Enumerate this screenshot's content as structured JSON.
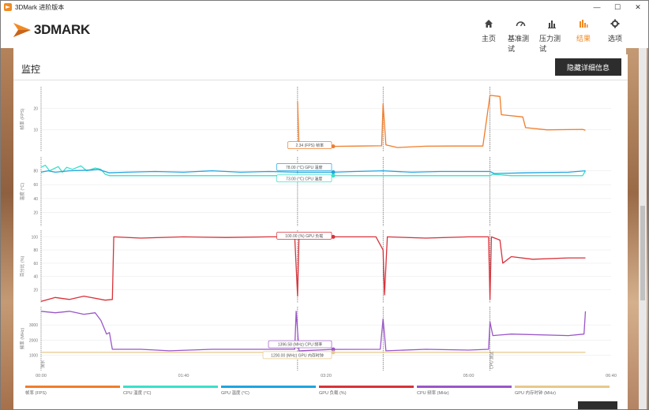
{
  "window": {
    "title": "3DMark 进阶版本",
    "controls": [
      "—",
      "☐",
      "✕"
    ]
  },
  "brand": {
    "logo_text": "3DMARK"
  },
  "nav": [
    {
      "label": "主页",
      "icon": "home-icon",
      "active": false
    },
    {
      "label": "基准测试",
      "icon": "gauge-icon",
      "active": false
    },
    {
      "label": "压力测试",
      "icon": "bars-icon",
      "active": false
    },
    {
      "label": "结果",
      "icon": "results-icon",
      "active": true
    },
    {
      "label": "选项",
      "icon": "gear-icon",
      "active": false
    }
  ],
  "monitor": {
    "title": "监控",
    "hide_details_label": "隐藏详细信息"
  },
  "colors": {
    "accent": "#f08a24",
    "fps": "#f07d2a",
    "cpu_temp": "#3ae0c8",
    "gpu_temp": "#1ea5e0",
    "gpu_load": "#d8323a",
    "cpu_freq": "#9a56c8",
    "gpu_mem_clock": "#e8c88a"
  },
  "chart_data": {
    "type": "line",
    "x_ticks": [
      "00:00",
      "01:40",
      "03:20",
      "05:00",
      "06:40"
    ],
    "x_range_seconds": [
      0,
      400
    ],
    "cursor_time_s": 205,
    "markers": [
      {
        "t": 180,
        "label": ""
      },
      {
        "t": 240,
        "label": ""
      },
      {
        "t": 315,
        "label": "CPU 测试"
      }
    ],
    "start_marker_label": "演示",
    "panels": [
      {
        "ylabel": "帧率 (FPS)",
        "y_ticks": [
          10,
          20
        ],
        "ylim": [
          0,
          30
        ],
        "series": [
          {
            "name": "帧率 (FPS)",
            "color": "#f07d2a",
            "points": [
              [
                180,
                23
              ],
              [
                181,
                3
              ],
              [
                190,
                2.3
              ],
              [
                205,
                2.34
              ],
              [
                225,
                2.5
              ],
              [
                239,
                2.6
              ],
              [
                240,
                22
              ],
              [
                242,
                3
              ],
              [
                250,
                1.8
              ],
              [
                270,
                2.4
              ],
              [
                290,
                2.5
              ],
              [
                310,
                2.5
              ],
              [
                315,
                26
              ],
              [
                322,
                25.5
              ],
              [
                323,
                17
              ],
              [
                338,
                16
              ],
              [
                340,
                11
              ],
              [
                355,
                10
              ],
              [
                380,
                10.2
              ],
              [
                382,
                9.8
              ]
            ]
          }
        ],
        "tooltips": [
          {
            "text": "2.34 (FPS) 帧率",
            "series": 0,
            "t": 205,
            "v": 2.34
          }
        ]
      },
      {
        "ylabel": "温度 (°C)",
        "y_ticks": [
          20,
          40,
          60,
          80
        ],
        "ylim": [
          0,
          100
        ],
        "series": [
          {
            "name": "CPU 温度 (°C)",
            "color": "#3ae0c8",
            "points": [
              [
                0,
                85
              ],
              [
                3,
                88
              ],
              [
                6,
                80
              ],
              [
                9,
                83
              ],
              [
                12,
                86
              ],
              [
                15,
                78
              ],
              [
                18,
                85
              ],
              [
                22,
                82
              ],
              [
                28,
                87
              ],
              [
                32,
                80
              ],
              [
                38,
                84
              ],
              [
                42,
                82
              ],
              [
                45,
                75
              ],
              [
                48,
                73
              ],
              [
                60,
                73
              ],
              [
                100,
                73
              ],
              [
                150,
                73
              ],
              [
                180,
                73
              ],
              [
                205,
                73
              ],
              [
                260,
                73
              ],
              [
                315,
                73
              ],
              [
                317,
                75
              ],
              [
                330,
                73
              ],
              [
                380,
                73
              ],
              [
                382,
                80
              ]
            ]
          },
          {
            "name": "GPU 温度 (°C)",
            "color": "#1ea5e0",
            "points": [
              [
                0,
                78
              ],
              [
                5,
                80
              ],
              [
                10,
                78
              ],
              [
                20,
                80
              ],
              [
                35,
                81
              ],
              [
                40,
                82
              ],
              [
                48,
                77
              ],
              [
                60,
                78
              ],
              [
                80,
                79
              ],
              [
                100,
                78
              ],
              [
                120,
                80
              ],
              [
                140,
                78
              ],
              [
                160,
                79
              ],
              [
                180,
                78
              ],
              [
                205,
                78
              ],
              [
                220,
                79
              ],
              [
                240,
                80
              ],
              [
                260,
                78
              ],
              [
                280,
                79
              ],
              [
                300,
                79
              ],
              [
                315,
                79
              ],
              [
                318,
                76
              ],
              [
                340,
                77
              ],
              [
                370,
                78
              ],
              [
                382,
                80
              ]
            ]
          }
        ],
        "tooltips": [
          {
            "text": "78.00 (°C) GPU 温度",
            "series": 1,
            "t": 205,
            "v": 78
          },
          {
            "text": "73.00 (°C) CPU 温度",
            "series": 0,
            "t": 205,
            "v": 73
          }
        ]
      },
      {
        "ylabel": "百分比 (%)",
        "y_ticks": [
          20,
          40,
          60,
          80,
          100
        ],
        "ylim": [
          0,
          110
        ],
        "series": [
          {
            "name": "GPU 负载 (%)",
            "color": "#d8323a",
            "points": [
              [
                0,
                2
              ],
              [
                10,
                8
              ],
              [
                20,
                5
              ],
              [
                30,
                10
              ],
              [
                45,
                4
              ],
              [
                50,
                5
              ],
              [
                51,
                100
              ],
              [
                70,
                98
              ],
              [
                100,
                100
              ],
              [
                130,
                99
              ],
              [
                160,
                100
              ],
              [
                178,
                100
              ],
              [
                180,
                10
              ],
              [
                181,
                100
              ],
              [
                205,
                100
              ],
              [
                235,
                100
              ],
              [
                240,
                80
              ],
              [
                241,
                12
              ],
              [
                243,
                100
              ],
              [
                270,
                98
              ],
              [
                300,
                100
              ],
              [
                314,
                100
              ],
              [
                315,
                5
              ],
              [
                316,
                100
              ],
              [
                322,
                95
              ],
              [
                324,
                60
              ],
              [
                330,
                70
              ],
              [
                345,
                66
              ],
              [
                370,
                68
              ],
              [
                382,
                68
              ]
            ]
          }
        ],
        "tooltips": [
          {
            "text": "100.00 (%) GPU 负载",
            "series": 0,
            "t": 205,
            "v": 100
          }
        ]
      },
      {
        "ylabel": "频率 (MHz)",
        "y_ticks": [
          1000,
          2000,
          3000
        ],
        "ylim": [
          0,
          4200
        ],
        "series": [
          {
            "name": "CPU 频率 (MHz)",
            "color": "#9a56c8",
            "points": [
              [
                0,
                3900
              ],
              [
                10,
                3800
              ],
              [
                20,
                3900
              ],
              [
                30,
                3700
              ],
              [
                38,
                3800
              ],
              [
                42,
                3300
              ],
              [
                46,
                2400
              ],
              [
                48,
                2500
              ],
              [
                50,
                1400
              ],
              [
                70,
                1400
              ],
              [
                90,
                1300
              ],
              [
                120,
                1400
              ],
              [
                150,
                1400
              ],
              [
                178,
                1400
              ],
              [
                179,
                3900
              ],
              [
                181,
                1300
              ],
              [
                205,
                1396.58
              ],
              [
                238,
                1400
              ],
              [
                240,
                3400
              ],
              [
                242,
                1300
              ],
              [
                270,
                1400
              ],
              [
                300,
                1350
              ],
              [
                314,
                1400
              ],
              [
                315,
                3200
              ],
              [
                317,
                2300
              ],
              [
                330,
                2400
              ],
              [
                370,
                2300
              ],
              [
                381,
                2400
              ],
              [
                382,
                3900
              ]
            ]
          },
          {
            "name": "GPU 内存时钟 (MHz)",
            "color": "#e8c88a",
            "points": [
              [
                0,
                1200
              ],
              [
                382,
                1200
              ]
            ]
          }
        ],
        "tooltips": [
          {
            "text": "1396.58 (MHz) CPU 频率",
            "series": 0,
            "t": 205,
            "v": 1396.58
          },
          {
            "text": "1200.00 (MHz) GPU 内存时钟",
            "series": 1,
            "t": 205,
            "v": 1200
          }
        ]
      }
    ],
    "legend": [
      {
        "label": "帧率 (FPS)",
        "color": "#f07d2a"
      },
      {
        "label": "CPU 温度 (°C)",
        "color": "#3ae0c8"
      },
      {
        "label": "GPU 温度 (°C)",
        "color": "#1ea5e0"
      },
      {
        "label": "GPU 负载 (%)",
        "color": "#d8323a"
      },
      {
        "label": "CPU 频率 (MHz)",
        "color": "#9a56c8"
      },
      {
        "label": "GPU 内存时钟 (MHz)",
        "color": "#e8c88a"
      }
    ]
  }
}
